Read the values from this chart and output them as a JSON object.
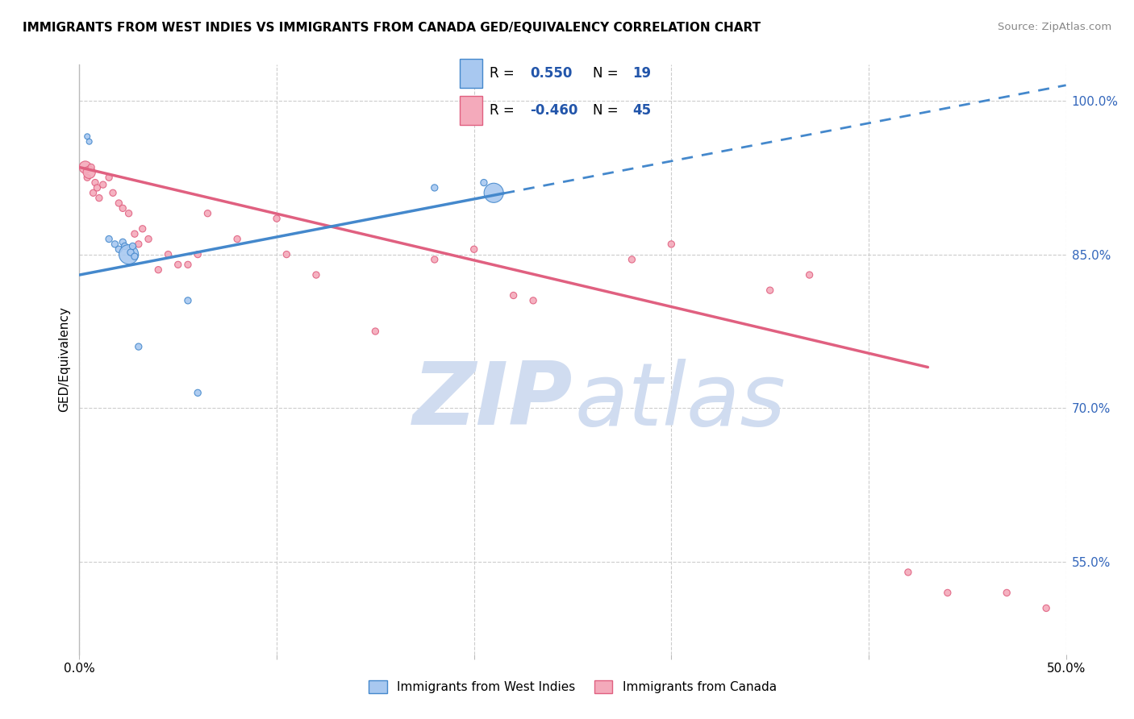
{
  "title": "IMMIGRANTS FROM WEST INDIES VS IMMIGRANTS FROM CANADA GED/EQUIVALENCY CORRELATION CHART",
  "source": "Source: ZipAtlas.com",
  "ylabel": "GED/Equivalency",
  "right_yticks": [
    100.0,
    85.0,
    70.0,
    55.0
  ],
  "right_ytick_labels": [
    "100.0%",
    "85.0%",
    "70.0%",
    "55.0%"
  ],
  "xmin": 0.0,
  "xmax": 50.0,
  "ymin": 46.0,
  "ymax": 103.5,
  "blue_color": "#A8C8F0",
  "pink_color": "#F4AABB",
  "blue_line_color": "#4488CC",
  "pink_line_color": "#E06080",
  "legend_R_color": "#2255AA",
  "legend_N_color": "#2255AA",
  "blue_scatter_x": [
    0.4,
    0.5,
    1.5,
    1.8,
    2.0,
    2.2,
    2.3,
    2.5,
    2.6,
    2.7,
    2.8,
    3.0,
    5.5,
    6.0,
    18.0,
    20.5,
    21.0
  ],
  "blue_scatter_y": [
    96.5,
    96.0,
    86.5,
    86.0,
    85.5,
    86.2,
    85.8,
    85.0,
    85.2,
    85.8,
    84.8,
    76.0,
    80.5,
    71.5,
    91.5,
    92.0,
    91.0
  ],
  "blue_scatter_size": [
    25,
    25,
    35,
    35,
    35,
    35,
    35,
    300,
    35,
    35,
    35,
    35,
    35,
    35,
    35,
    35,
    300
  ],
  "pink_scatter_x": [
    0.3,
    0.4,
    0.5,
    0.6,
    0.7,
    0.8,
    0.9,
    1.0,
    1.2,
    1.5,
    1.7,
    2.0,
    2.2,
    2.5,
    2.8,
    3.0,
    3.2,
    3.5,
    4.0,
    4.5,
    5.0,
    5.5,
    6.0,
    6.5,
    8.0,
    10.0,
    10.5,
    12.0,
    15.0,
    18.0,
    20.0,
    22.0,
    23.0,
    28.0,
    30.0,
    35.0,
    37.0,
    42.0,
    44.0,
    47.0,
    49.0
  ],
  "pink_scatter_y": [
    93.5,
    92.5,
    93.0,
    93.5,
    91.0,
    92.0,
    91.5,
    90.5,
    91.8,
    92.5,
    91.0,
    90.0,
    89.5,
    89.0,
    87.0,
    86.0,
    87.5,
    86.5,
    83.5,
    85.0,
    84.0,
    84.0,
    85.0,
    89.0,
    86.5,
    88.5,
    85.0,
    83.0,
    77.5,
    84.5,
    85.5,
    81.0,
    80.5,
    84.5,
    86.0,
    81.5,
    83.0,
    54.0,
    52.0,
    52.0,
    50.5
  ],
  "pink_scatter_size": [
    120,
    35,
    120,
    35,
    35,
    35,
    35,
    35,
    35,
    35,
    35,
    35,
    35,
    35,
    35,
    35,
    35,
    35,
    35,
    35,
    35,
    35,
    35,
    35,
    35,
    35,
    35,
    35,
    35,
    35,
    35,
    35,
    35,
    35,
    35,
    35,
    35,
    35,
    35,
    35,
    35
  ],
  "blue_trend_x0": 0.0,
  "blue_trend_x1": 50.0,
  "blue_trend_y0": 83.0,
  "blue_trend_y1": 101.5,
  "blue_solid_end_x": 21.5,
  "pink_trend_x0": 0.0,
  "pink_trend_x1": 43.0,
  "pink_trend_y0": 93.5,
  "pink_trend_y1": 74.0,
  "grid_color": "#CCCCCC",
  "background_color": "#FFFFFF",
  "watermark_color": "#D0DCF0"
}
